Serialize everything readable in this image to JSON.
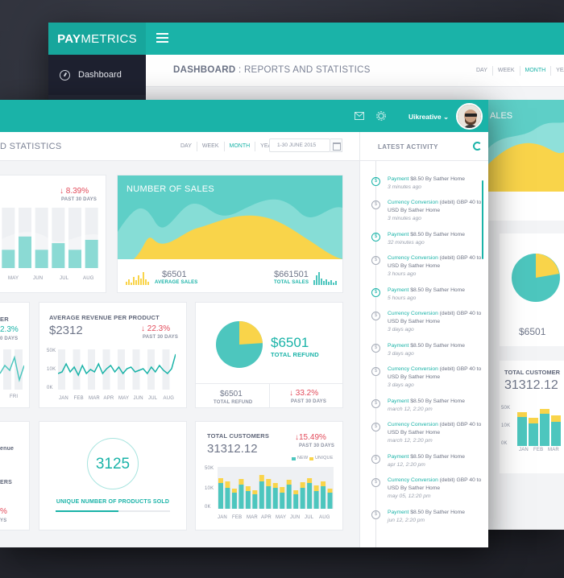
{
  "brand": {
    "bold": "PAY",
    "rest": "METRICS"
  },
  "back": {
    "sidebar_item": "Dashboard",
    "title_bold": "DASHBOARD",
    "title_rest": " : REPORTS AND STATISTICS",
    "periods": [
      "DAY",
      "WEEK",
      "MONTH",
      "YEAR"
    ],
    "peek_sales": "ALES",
    "pie_value": "$6501",
    "customers_label": "TOTAL CUSTOMER",
    "customers_value": "31312.12",
    "axis": [
      "50K",
      "10K",
      "0K"
    ],
    "months": [
      "JAN",
      "FEB",
      "MAR"
    ]
  },
  "front": {
    "title": "D STATISTICS",
    "periods": [
      "DAY",
      "WEEK",
      "MONTH",
      "YEAR"
    ],
    "active_period": "MONTH",
    "date_range": "1-30 JUNE 2015",
    "user": "Uikreative",
    "card1": {
      "pct": "8.39%",
      "past": "PAST 30 DAYS",
      "months": [
        "MAY",
        "JUN",
        "JUL",
        "AUG"
      ],
      "bars": [
        0.55,
        0.95,
        0.55,
        0.75,
        0.55,
        0.85
      ]
    },
    "sales": {
      "title": "NUMBER OF SALES",
      "avg_value": "$6501",
      "avg_label": "AVERAGE SALES",
      "total_value": "$661501",
      "total_label": "TOTAL SALES"
    },
    "card_er": {
      "label": "ER",
      "pct": "2.3%",
      "pct2": "0 DAYS",
      "days": [
        "FRI"
      ]
    },
    "avg_rev": {
      "title": "AVERAGE REVENUE PER PRODUCT",
      "value": "$2312",
      "pct": "22.3%",
      "past": "PAST 30 DAYS",
      "axis": [
        "50K",
        "10K",
        "0K"
      ],
      "months": [
        "JAN",
        "FEB",
        "MAR",
        "APR",
        "MAY",
        "JUN",
        "JUL",
        "AUG"
      ]
    },
    "refund": {
      "value": "$6501",
      "label": "TOTAL REFUND",
      "sub_value": "$6501",
      "sub_label": "TOTAL REFUND",
      "pct": "33.2%",
      "past": "PAST 30 DAYS",
      "pie": 0.24
    },
    "left_bottom": {
      "l1": "enue",
      "l2": "ERS",
      "pct": "%",
      "pct2": "YS"
    },
    "unique": {
      "value": "3125",
      "label": "UNIQUE NUMBER OF PRODUCTS  SOLD",
      "progress": 0.55
    },
    "customers": {
      "title": "TOTAL CUSTOMERS",
      "value": "31312.12",
      "pct": "15.49%",
      "past": "PAST 30 DAYS",
      "legend_new": "NEW",
      "legend_unique": "UNIQUE",
      "axis": [
        "50K",
        "10K",
        "0K"
      ],
      "months": [
        "JAN",
        "FEB",
        "MAR",
        "APR",
        "MAY",
        "JUN",
        "JUL",
        "AUG"
      ]
    }
  },
  "activity": {
    "title": "LATEST ACTIVITY",
    "items": [
      {
        "kind": "Payment",
        "text": " $8.50 By Sather Home",
        "time": "3 minutes ago",
        "green": true
      },
      {
        "kind": "Currency Conversion",
        "text": " (debit) GBP 40 to USD By Sather Home",
        "time": "3 minutes ago",
        "green": false
      },
      {
        "kind": "Payment",
        "text": " $8.50 By Sather Home",
        "time": "32 minutes ago",
        "green": true
      },
      {
        "kind": "Currency Conversion",
        "text": " (debit) GBP 40 to USD By Sather Home",
        "time": "3 hours ago",
        "green": false
      },
      {
        "kind": "Payment",
        "text": " $8.50 By Sather Home",
        "time": "5 hours ago",
        "green": true
      },
      {
        "kind": "Currency Conversion",
        "text": " (debit) GBP 40 to USD By Sather Home",
        "time": "3 days ago",
        "green": false
      },
      {
        "kind": "Payment",
        "text": " $8.50 By Sather Home",
        "time": "3 days ago",
        "green": false
      },
      {
        "kind": "Currency Conversion",
        "text": " (debit) GBP 40 to USD By Sather Home",
        "time": "3 days ago",
        "green": false
      },
      {
        "kind": "Payment",
        "text": " $8.50 By Sather Home",
        "time": "march 12, 2:20 pm",
        "green": false
      },
      {
        "kind": "Currency Conversion",
        "text": " (debit) GBP 40 to USD By Sather Home",
        "time": "march 12, 2:20 pm",
        "green": false
      },
      {
        "kind": "Payment",
        "text": " $8.50 By Sather Home",
        "time": "apr 12, 2:20 pm",
        "green": false
      },
      {
        "kind": "Currency Conversion",
        "text": " (debit) GBP 40 to USD By Sather Home",
        "time": "may 05, 12:20 pm",
        "green": false
      },
      {
        "kind": "Payment",
        "text": " $8.50 By Sather Home",
        "time": "jun 12, 2:20 pm",
        "green": false
      }
    ]
  },
  "colors": {
    "teal": "#1ab3a8",
    "mint": "#5ecfc7",
    "yellow": "#f9d44a",
    "red": "#e24a5a"
  }
}
